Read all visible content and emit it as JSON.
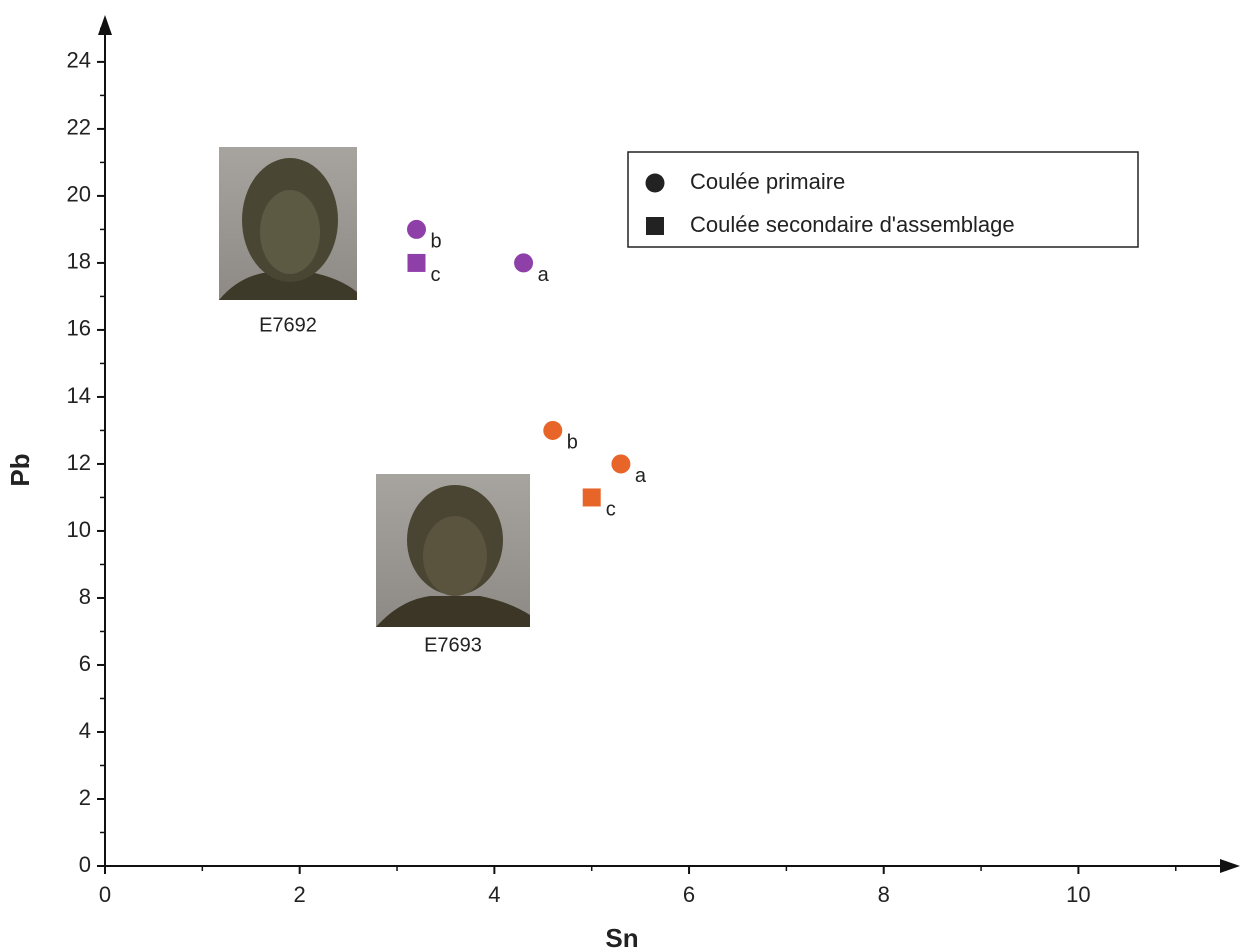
{
  "chart_data": {
    "type": "scatter",
    "x_label": "Sn",
    "y_label": "Pb",
    "xlim": [
      0,
      11.66
    ],
    "ylim": [
      0,
      25.4
    ],
    "xticks": [
      0,
      2,
      4,
      6,
      8,
      10
    ],
    "yticks": [
      0,
      2,
      4,
      6,
      8,
      10,
      12,
      14,
      16,
      18,
      20,
      22,
      24
    ],
    "xminorticks": [
      1,
      3,
      5,
      7,
      9,
      11
    ],
    "yminorticks": [
      1,
      3,
      5,
      7,
      9,
      11,
      13,
      15,
      17,
      19,
      21,
      23,
      25
    ],
    "legend_position": "upper right",
    "legend_color": "#222222",
    "series": [
      {
        "name": "Coulée primaire",
        "marker": "circle",
        "x": [
          3.2,
          4.3,
          4.6,
          5.3
        ],
        "values": [
          19,
          18,
          13,
          12
        ],
        "point_labels": [
          "b",
          "a",
          "b",
          "a"
        ],
        "colors": [
          "#8e40a8",
          "#8e40a8",
          "#e8652a",
          "#e8652a"
        ]
      },
      {
        "name": "Coulée secondaire d'assemblage",
        "marker": "square",
        "x": [
          3.2,
          5.0
        ],
        "values": [
          18,
          11
        ],
        "point_labels": [
          "c",
          "c"
        ],
        "colors": [
          "#8e40a8",
          "#e8652a"
        ]
      }
    ],
    "annotations": [
      "E7692",
      "E7693"
    ]
  }
}
